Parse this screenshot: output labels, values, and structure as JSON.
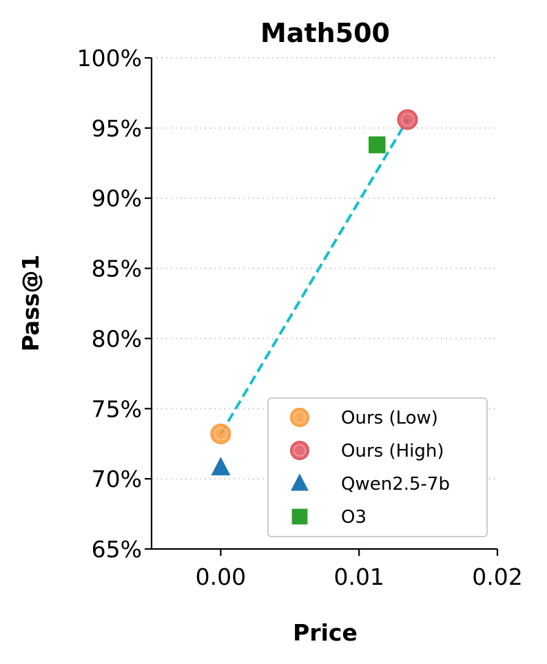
{
  "chart_data": {
    "type": "scatter",
    "title": "Math500",
    "xlabel": "Price",
    "ylabel": "Pass@1",
    "xlim": [
      -0.005,
      0.02
    ],
    "ylim": [
      65,
      100
    ],
    "xticks": [
      0.0,
      0.01,
      0.02
    ],
    "xtick_labels": [
      "0.00",
      "0.01",
      "0.02"
    ],
    "yticks": [
      65,
      70,
      75,
      80,
      85,
      90,
      95,
      100
    ],
    "ytick_labels": [
      "65%",
      "70%",
      "75%",
      "80%",
      "85%",
      "90%",
      "95%",
      "100%"
    ],
    "grid": "horizontal-dotted",
    "legend_position": "lower-right",
    "series": [
      {
        "name": "Ours (Low)",
        "marker": "circle",
        "color": "#ff9a3c",
        "x": 0.0,
        "y": 73.2
      },
      {
        "name": "Ours (High)",
        "marker": "circle",
        "color": "#e0505a",
        "x": 0.0135,
        "y": 95.6
      },
      {
        "name": "Qwen2.5-7b",
        "marker": "triangle",
        "color": "#1f77b4",
        "x": 0.0,
        "y": 70.8
      },
      {
        "name": "O3",
        "marker": "square",
        "color": "#2ca02c",
        "x": 0.0113,
        "y": 93.8
      }
    ],
    "trend_line": {
      "from": [
        0.0,
        73.2
      ],
      "to": [
        0.0135,
        95.6
      ],
      "color": "#17becf",
      "style": "dashed"
    }
  }
}
